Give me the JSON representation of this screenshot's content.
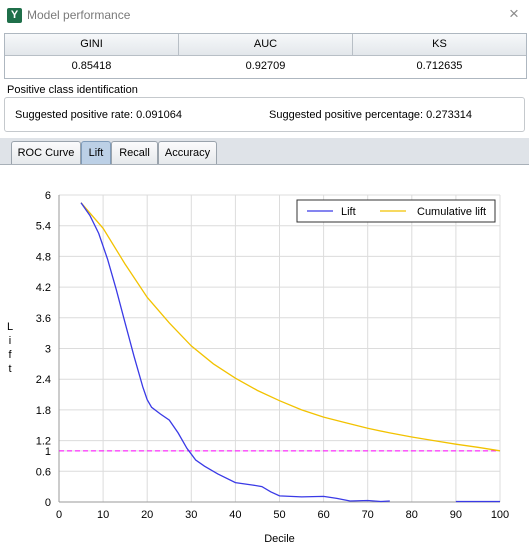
{
  "window": {
    "title": "Model performance",
    "close_symbol": "×",
    "app_icon_letter": "Y"
  },
  "metrics": {
    "headers": [
      "GINI",
      "AUC",
      "KS"
    ],
    "values": [
      "0.85418",
      "0.92709",
      "0.712635"
    ]
  },
  "positive_class": {
    "label": "Positive class identification",
    "rate_text": "Suggested positive rate: 0.091064",
    "percentage_text": "Suggested positive percentage: 0.273314"
  },
  "tabs": [
    "ROC Curve",
    "Lift",
    "Recall",
    "Accuracy"
  ],
  "active_tab": "Lift",
  "chart_data": {
    "type": "line",
    "xlabel": "Decile",
    "ylabel": "Lift",
    "xlim": [
      0,
      100
    ],
    "ylim": [
      0,
      6
    ],
    "x_ticks": [
      0,
      10,
      20,
      30,
      40,
      50,
      60,
      70,
      80,
      90,
      100
    ],
    "y_ticks": [
      0,
      0.6,
      1,
      1.2,
      1.8,
      2.4,
      3,
      3.6,
      4.2,
      4.8,
      5.4,
      6
    ],
    "grid": true,
    "legend_position": "top-right",
    "reference_line": {
      "y": 1,
      "color": "#ff00ff",
      "style": "dashed"
    },
    "series": [
      {
        "name": "Lift",
        "color": "#3a3ae6",
        "points": [
          [
            5,
            5.85
          ],
          [
            7,
            5.6
          ],
          [
            9,
            5.25
          ],
          [
            11,
            4.75
          ],
          [
            13,
            4.15
          ],
          [
            15,
            3.5
          ],
          [
            17,
            2.85
          ],
          [
            19,
            2.25
          ],
          [
            20,
            2.0
          ],
          [
            21,
            1.85
          ],
          [
            23,
            1.72
          ],
          [
            25,
            1.6
          ],
          [
            27,
            1.35
          ],
          [
            29,
            1.05
          ],
          [
            31,
            0.82
          ],
          [
            33,
            0.7
          ],
          [
            36,
            0.55
          ],
          [
            40,
            0.38
          ],
          [
            44,
            0.33
          ],
          [
            46,
            0.3
          ],
          [
            48,
            0.2
          ],
          [
            50,
            0.12
          ],
          [
            55,
            0.1
          ],
          [
            60,
            0.11
          ],
          [
            63,
            0.07
          ],
          [
            66,
            0.02
          ],
          [
            70,
            0.03
          ],
          [
            73,
            0.01
          ],
          [
            75,
            0.02
          ]
        ],
        "points_2": [
          [
            90,
            0.01
          ],
          [
            100,
            0.01
          ]
        ]
      },
      {
        "name": "Cumulative lift",
        "color": "#f2c200",
        "points": [
          [
            5,
            5.85
          ],
          [
            10,
            5.35
          ],
          [
            15,
            4.65
          ],
          [
            20,
            4.0
          ],
          [
            25,
            3.5
          ],
          [
            30,
            3.05
          ],
          [
            35,
            2.7
          ],
          [
            40,
            2.42
          ],
          [
            45,
            2.18
          ],
          [
            50,
            1.98
          ],
          [
            55,
            1.8
          ],
          [
            60,
            1.66
          ],
          [
            65,
            1.55
          ],
          [
            70,
            1.44
          ],
          [
            75,
            1.35
          ],
          [
            80,
            1.27
          ],
          [
            85,
            1.2
          ],
          [
            90,
            1.13
          ],
          [
            95,
            1.07
          ],
          [
            100,
            1.0
          ]
        ]
      }
    ]
  }
}
